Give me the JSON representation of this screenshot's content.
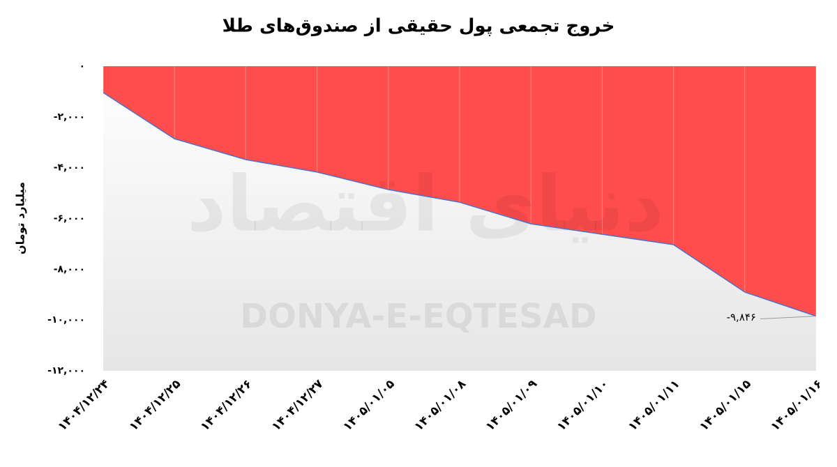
{
  "chart_data": {
    "type": "area",
    "title": "خروج تجمعی پول حقیقی از صندوق‌های طلا",
    "y_label": "میلیارد تومان",
    "watermark": "DONYA-E-EQTESAD",
    "watermark_logo": "دنیای اقتصاد",
    "categories": [
      "۱۴۰۴/۱۲/۲۴",
      "۱۴۰۴/۱۲/۲۵",
      "۱۴۰۴/۱۲/۲۶",
      "۱۴۰۴/۱۲/۲۷",
      "۱۴۰۵/۰۱/۰۵",
      "۱۴۰۵/۰۱/۰۸",
      "۱۴۰۵/۰۱/۰۹",
      "۱۴۰۵/۰۱/۱۰",
      "۱۴۰۵/۰۱/۱۱",
      "۱۴۰۵/۰۱/۱۵",
      "۱۴۰۵/۰۱/۱۶"
    ],
    "values": [
      -1040,
      -2860,
      -3680,
      -4170,
      -4860,
      -5360,
      -6210,
      -6620,
      -7030,
      -8900,
      -9846
    ],
    "value_labels": [
      null,
      null,
      null,
      null,
      null,
      null,
      null,
      null,
      null,
      null,
      "-۹,۸۴۶"
    ],
    "color": "#ff4d4d",
    "line_color": "#4a72c8",
    "ylim": [
      -12000,
      0
    ],
    "yticks": [
      {
        "value": 0,
        "label": "۰"
      },
      {
        "value": -2000,
        "label": "-۲,۰۰۰"
      },
      {
        "value": -4000,
        "label": "-۴,۰۰۰"
      },
      {
        "value": -6000,
        "label": "-۶,۰۰۰"
      },
      {
        "value": -8000,
        "label": "-۸,۰۰۰"
      },
      {
        "value": -10000,
        "label": "-۱۰,۰۰۰"
      },
      {
        "value": -12000,
        "label": "-۱۲,۰۰۰"
      }
    ]
  }
}
